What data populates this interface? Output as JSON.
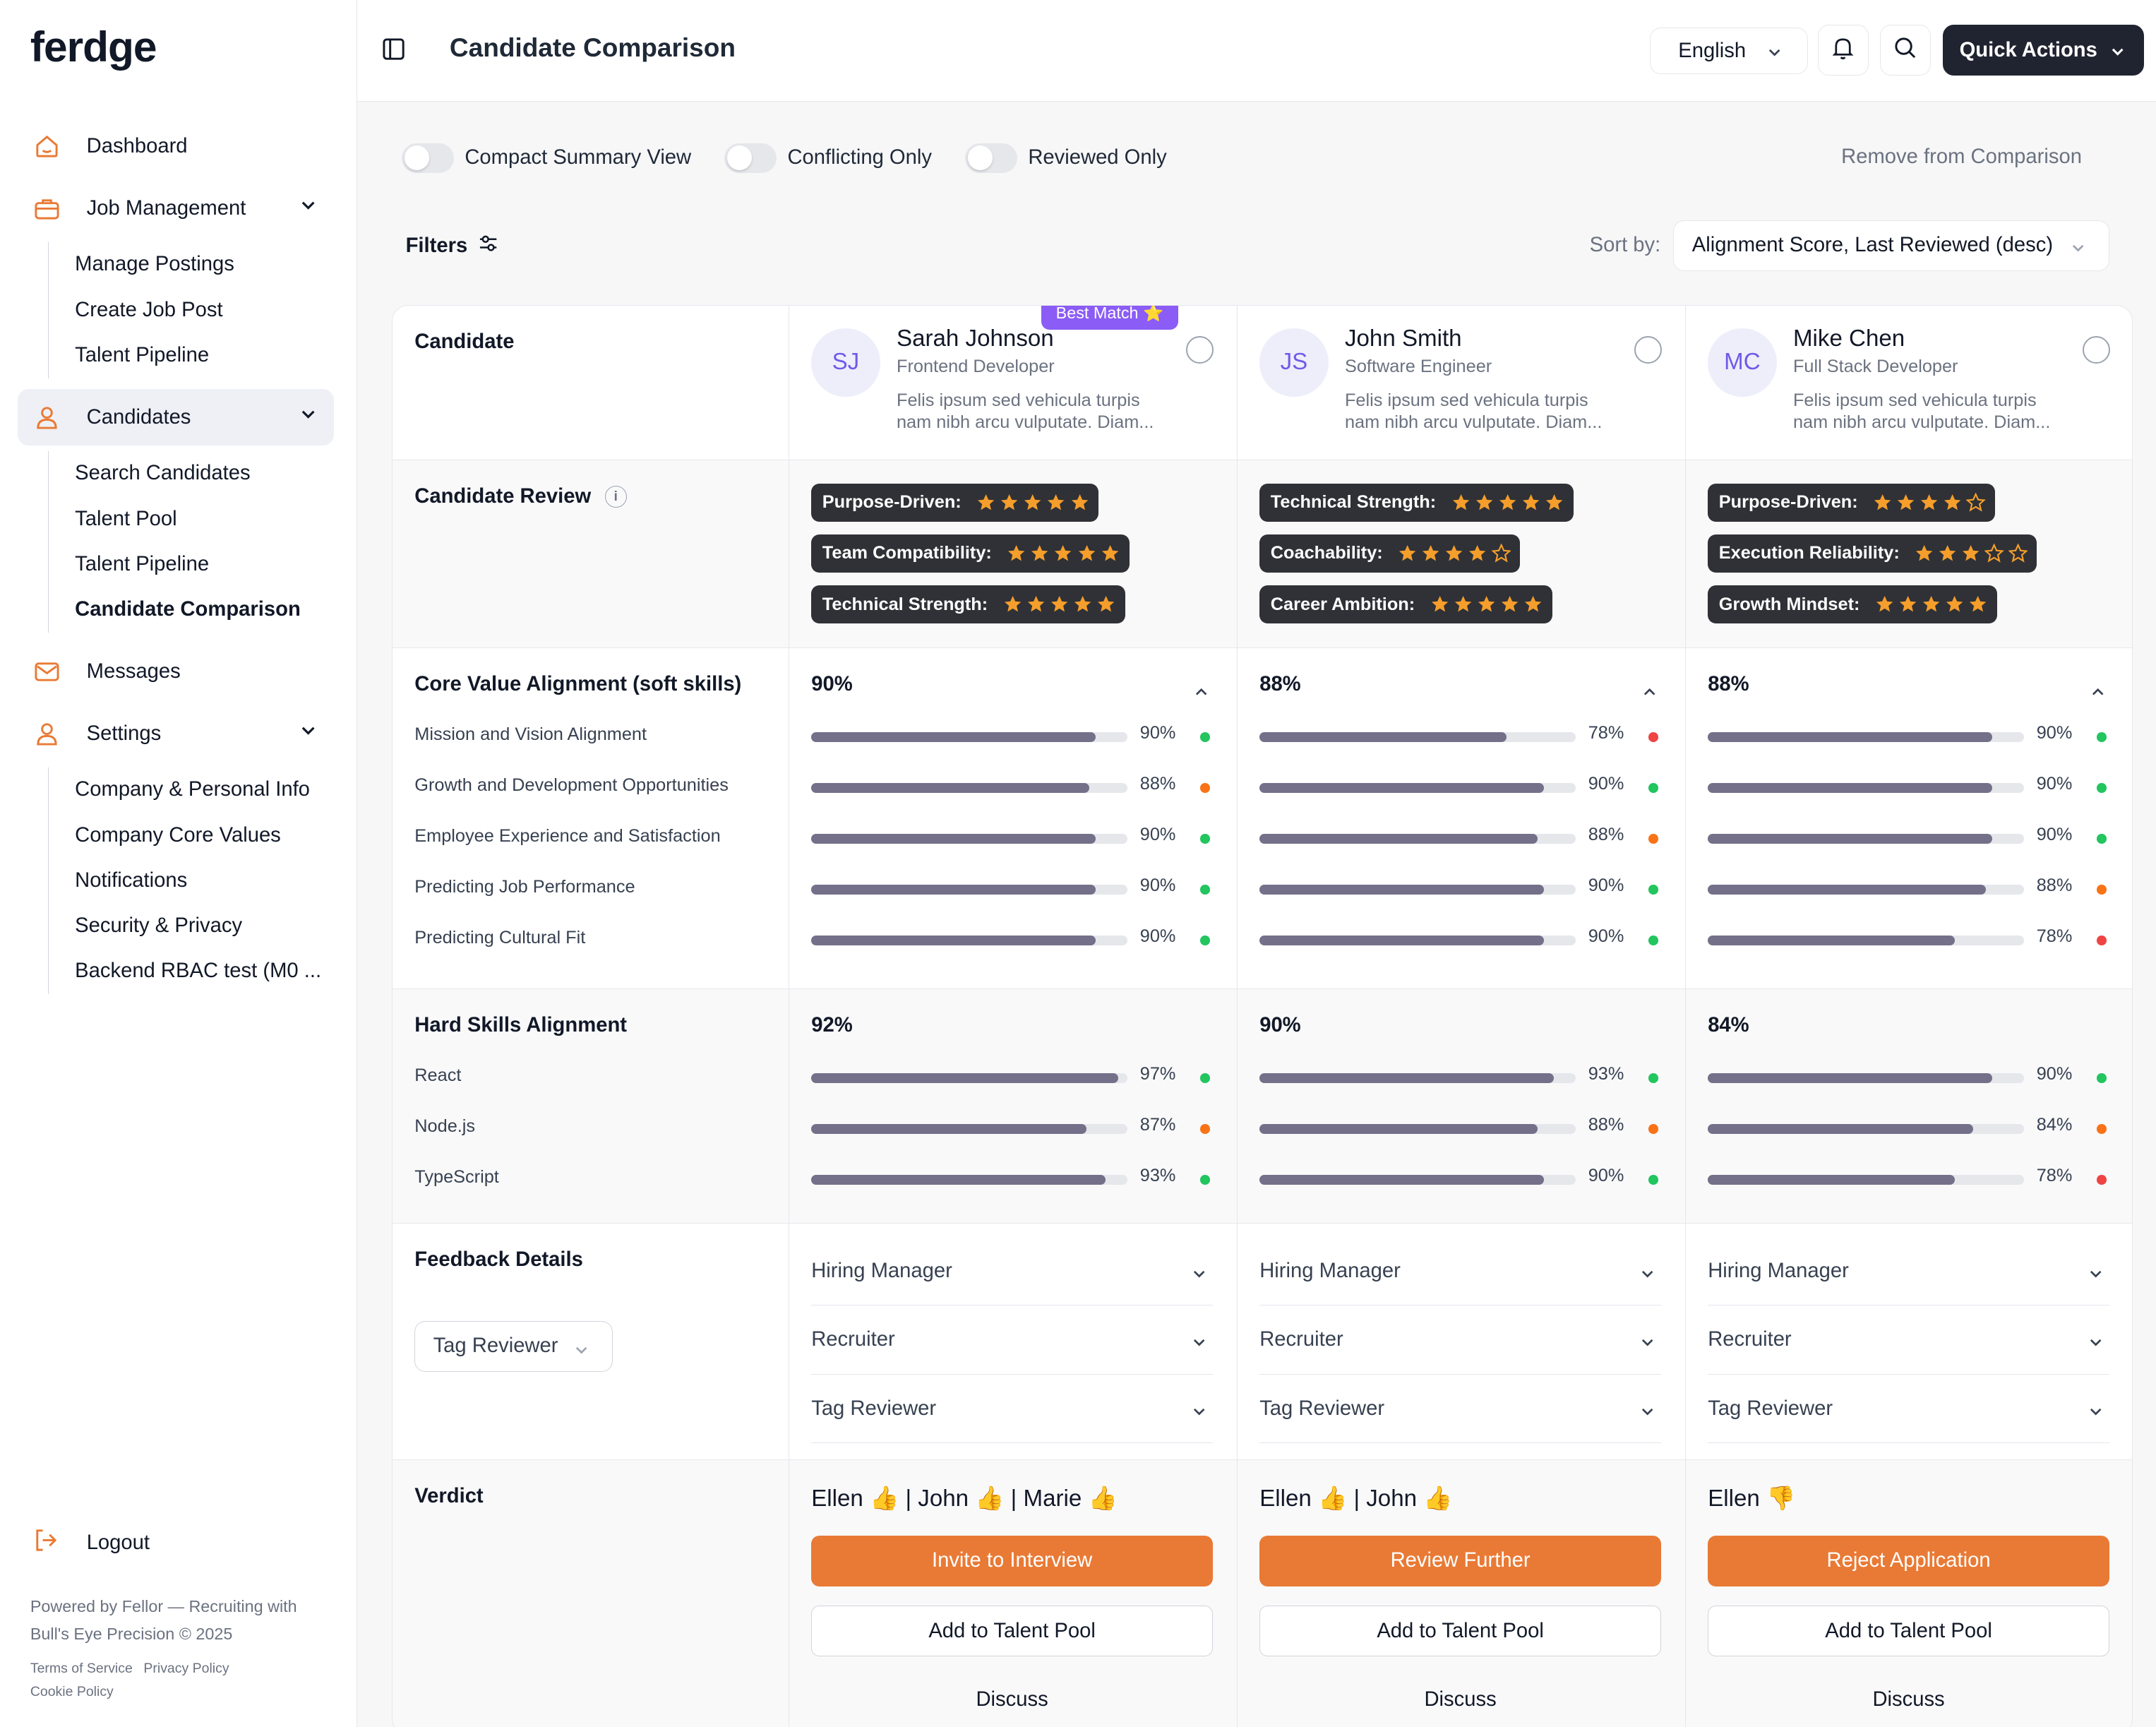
{
  "app": {
    "logo": "ferdge",
    "page_title": "Candidate Comparison"
  },
  "sidebar": {
    "items": [
      {
        "label": "Dashboard",
        "icon": "home-icon"
      },
      {
        "label": "Job Management",
        "icon": "briefcase-icon",
        "subs": [
          "Manage Postings",
          "Create Job Post",
          "Talent Pipeline"
        ]
      },
      {
        "label": "Candidates",
        "icon": "user-icon",
        "subs": [
          "Search Candidates",
          "Talent Pool",
          "Talent Pipeline",
          "Candidate Comparison"
        ]
      },
      {
        "label": "Messages",
        "icon": "mail-icon"
      },
      {
        "label": "Settings",
        "icon": "user-icon",
        "subs": [
          "Company & Personal Info",
          "Company Core Values",
          "Notifications",
          "Security & Privacy",
          "Backend RBAC test (M0 ..."
        ]
      }
    ],
    "logout": "Logout",
    "powered": "Powered by Fellor — Recruiting with Bull's Eye Precision © 2025",
    "terms": "Terms of Service",
    "privacy": "Privacy Policy",
    "cookie": "Cookie Policy"
  },
  "header": {
    "language": "English",
    "quick_actions": "Quick Actions"
  },
  "toolbar": {
    "toggles": [
      "Compact Summary View",
      "Conflicting Only",
      "Reviewed Only"
    ],
    "remove": "Remove from Comparison",
    "filters": "Filters",
    "sort_label": "Sort by:",
    "sort_value": "Alignment Score, Last Reviewed (desc)"
  },
  "labels": {
    "candidate": "Candidate",
    "review": "Candidate Review",
    "info": "i",
    "core": "Core Value Alignment (soft skills)",
    "hard": "Hard Skills Alignment",
    "feedback": "Feedback Details",
    "tag_select": "Tag Reviewer",
    "verdict": "Verdict",
    "best_match": "Best Match ⭐"
  },
  "core_criteria": [
    "Mission and Vision Alignment",
    "Growth and Development Opportunities",
    "Employee Experience and Satisfaction",
    "Predicting Job Performance",
    "Predicting Cultural Fit"
  ],
  "hard_criteria": [
    "React",
    "Node.js",
    "TypeScript"
  ],
  "feedback_rows": [
    "Hiring Manager",
    "Recruiter",
    "Tag Reviewer"
  ],
  "colors": {
    "green": "#22c55e",
    "orange": "#f97316",
    "red": "#ef4444",
    "accent": "#e97a35",
    "bar": "#747089",
    "star": "#f59e2b"
  },
  "candidates": [
    {
      "initials": "SJ",
      "name": "Sarah Johnson",
      "role": "Frontend Developer",
      "desc": "Felis ipsum sed vehicula turpis nam nibh arcu vulputate. Diam...",
      "best": true,
      "reviews": [
        {
          "label": "Purpose-Driven:",
          "stars": 5
        },
        {
          "label": "Team Compatibility:",
          "stars": 5
        },
        {
          "label": "Technical Strength:",
          "stars": 5
        }
      ],
      "core_total": "90%",
      "core": [
        {
          "v": 90,
          "t": "90%",
          "s": "green"
        },
        {
          "v": 88,
          "t": "88%",
          "s": "orange"
        },
        {
          "v": 90,
          "t": "90%",
          "s": "green"
        },
        {
          "v": 90,
          "t": "90%",
          "s": "green"
        },
        {
          "v": 90,
          "t": "90%",
          "s": "green"
        }
      ],
      "hard_total": "92%",
      "hard": [
        {
          "v": 97,
          "t": "97%",
          "s": "green"
        },
        {
          "v": 87,
          "t": "87%",
          "s": "orange"
        },
        {
          "v": 93,
          "t": "93%",
          "s": "green"
        }
      ],
      "votes": "Ellen 👍 | John 👍 | Marie 👍",
      "primary": "Invite to Interview",
      "secondary": "Add to Talent Pool",
      "discuss": "Discuss"
    },
    {
      "initials": "JS",
      "name": "John Smith",
      "role": "Software Engineer",
      "desc": "Felis ipsum sed vehicula turpis nam nibh arcu vulputate. Diam...",
      "best": false,
      "reviews": [
        {
          "label": "Technical Strength:",
          "stars": 5
        },
        {
          "label": "Coachability:",
          "stars": 4
        },
        {
          "label": "Career Ambition:",
          "stars": 5
        }
      ],
      "core_total": "88%",
      "core": [
        {
          "v": 78,
          "t": "78%",
          "s": "red"
        },
        {
          "v": 90,
          "t": "90%",
          "s": "green"
        },
        {
          "v": 88,
          "t": "88%",
          "s": "orange"
        },
        {
          "v": 90,
          "t": "90%",
          "s": "green"
        },
        {
          "v": 90,
          "t": "90%",
          "s": "green"
        }
      ],
      "hard_total": "90%",
      "hard": [
        {
          "v": 93,
          "t": "93%",
          "s": "green"
        },
        {
          "v": 88,
          "t": "88%",
          "s": "orange"
        },
        {
          "v": 90,
          "t": "90%",
          "s": "green"
        }
      ],
      "votes": "Ellen 👍 | John 👍",
      "primary": "Review Further",
      "secondary": "Add to Talent Pool",
      "discuss": "Discuss"
    },
    {
      "initials": "MC",
      "name": "Mike Chen",
      "role": "Full Stack Developer",
      "desc": "Felis ipsum sed vehicula turpis nam nibh arcu vulputate. Diam...",
      "best": false,
      "reviews": [
        {
          "label": "Purpose-Driven:",
          "stars": 4
        },
        {
          "label": "Execution Reliability:",
          "stars": 3
        },
        {
          "label": "Growth Mindset:",
          "stars": 5
        }
      ],
      "core_total": "88%",
      "core": [
        {
          "v": 90,
          "t": "90%",
          "s": "green"
        },
        {
          "v": 90,
          "t": "90%",
          "s": "green"
        },
        {
          "v": 90,
          "t": "90%",
          "s": "green"
        },
        {
          "v": 88,
          "t": "88%",
          "s": "orange"
        },
        {
          "v": 78,
          "t": "78%",
          "s": "red"
        }
      ],
      "hard_total": "84%",
      "hard": [
        {
          "v": 90,
          "t": "90%",
          "s": "green"
        },
        {
          "v": 84,
          "t": "84%",
          "s": "orange"
        },
        {
          "v": 78,
          "t": "78%",
          "s": "red"
        }
      ],
      "votes": "Ellen 👎",
      "primary": "Reject Application",
      "secondary": "Add to Talent Pool",
      "discuss": "Discuss"
    }
  ]
}
